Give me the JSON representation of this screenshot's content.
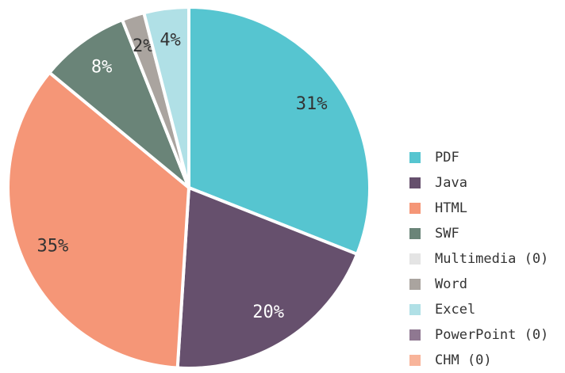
{
  "chart_data": {
    "type": "pie",
    "categories": [
      "PDF",
      "Java",
      "HTML",
      "SWF",
      "Multimedia (0)",
      "Word",
      "Excel",
      "PowerPoint (0)",
      "CHM (0)"
    ],
    "values": [
      31,
      20,
      35,
      8,
      0,
      2,
      4,
      0,
      0
    ],
    "value_labels": [
      "31%",
      "20%",
      "35%",
      "8%",
      null,
      "2%",
      "4%",
      null,
      null
    ],
    "colors": [
      "#56c5d0",
      "#66506d",
      "#f59677",
      "#6a8478",
      "#e4e4e4",
      "#aaa49f",
      "#b0e0e6",
      "#8f7891",
      "#f8b49a"
    ],
    "legend": "right"
  }
}
